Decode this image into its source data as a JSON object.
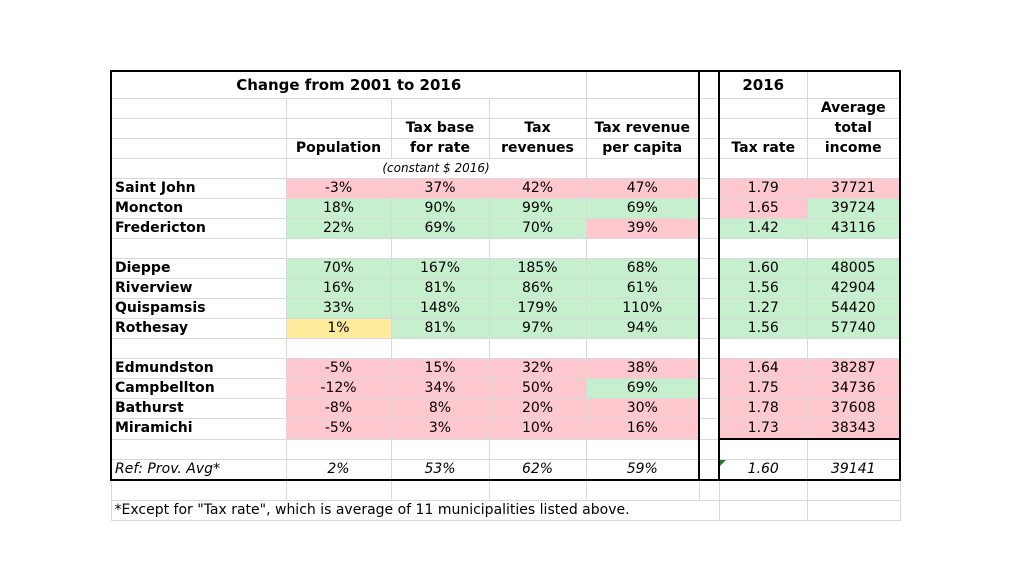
{
  "header": {
    "change_title": "Change from 2001 to 2016",
    "year_title": "2016",
    "col_population": "Population",
    "col_taxbase_1": "Tax base",
    "col_taxbase_2": "for rate",
    "col_taxrev_1": "Tax",
    "col_taxrev_2": "revenues",
    "col_percap_1": "Tax revenue",
    "col_percap_2": "per capita",
    "col_taxrate": "Tax rate",
    "col_income_1": "Average",
    "col_income_2": "total",
    "col_income_3": "income",
    "constant_note": "(constant $ 2016)"
  },
  "rows": {
    "saint_john": {
      "name": "Saint John",
      "population": "-3%",
      "taxbase": "37%",
      "taxrev": "42%",
      "percap": "47%",
      "taxrate": "1.79",
      "income": "37721"
    },
    "moncton": {
      "name": "Moncton",
      "population": "18%",
      "taxbase": "90%",
      "taxrev": "99%",
      "percap": "69%",
      "taxrate": "1.65",
      "income": "39724"
    },
    "fredericton": {
      "name": "Fredericton",
      "population": "22%",
      "taxbase": "69%",
      "taxrev": "70%",
      "percap": "39%",
      "taxrate": "1.42",
      "income": "43116"
    },
    "dieppe": {
      "name": "Dieppe",
      "population": "70%",
      "taxbase": "167%",
      "taxrev": "185%",
      "percap": "68%",
      "taxrate": "1.60",
      "income": "48005"
    },
    "riverview": {
      "name": "Riverview",
      "population": "16%",
      "taxbase": "81%",
      "taxrev": "86%",
      "percap": "61%",
      "taxrate": "1.56",
      "income": "42904"
    },
    "quispamsis": {
      "name": "Quispamsis",
      "population": "33%",
      "taxbase": "148%",
      "taxrev": "179%",
      "percap": "110%",
      "taxrate": "1.27",
      "income": "54420"
    },
    "rothesay": {
      "name": "Rothesay",
      "population": "1%",
      "taxbase": "81%",
      "taxrev": "97%",
      "percap": "94%",
      "taxrate": "1.56",
      "income": "57740"
    },
    "edmundston": {
      "name": "Edmundston",
      "population": "-5%",
      "taxbase": "15%",
      "taxrev": "32%",
      "percap": "38%",
      "taxrate": "1.64",
      "income": "38287"
    },
    "campbellton": {
      "name": "Campbellton",
      "population": "-12%",
      "taxbase": "34%",
      "taxrev": "50%",
      "percap": "69%",
      "taxrate": "1.75",
      "income": "34736"
    },
    "bathurst": {
      "name": "Bathurst",
      "population": "-8%",
      "taxbase": "8%",
      "taxrev": "20%",
      "percap": "30%",
      "taxrate": "1.78",
      "income": "37608"
    },
    "miramichi": {
      "name": "Miramichi",
      "population": "-5%",
      "taxbase": "3%",
      "taxrev": "10%",
      "percap": "16%",
      "taxrate": "1.73",
      "income": "38343"
    }
  },
  "ref": {
    "name": "Ref: Prov. Avg*",
    "population": "2%",
    "taxbase": "53%",
    "taxrev": "62%",
    "percap": "59%",
    "taxrate": "1.60",
    "income": "39141"
  },
  "footnote": "*Except for \"Tax rate\", which is average of 11 municipalities listed above.",
  "colors": {
    "red_fill": "#ffc7ce",
    "red_text": "#9c0006",
    "green_fill": "#c6efce",
    "green_text": "#006100",
    "yellow_fill": "#ffeb9c",
    "yellow_text": "#9c5700",
    "ref_text": "#1f4e79"
  }
}
